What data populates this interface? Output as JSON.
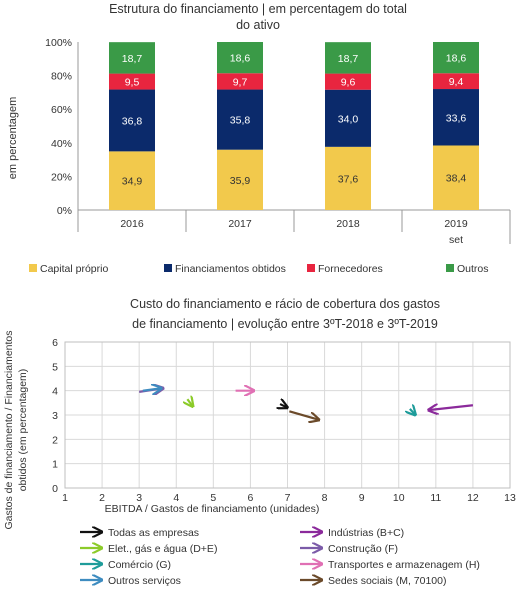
{
  "chart_data": [
    {
      "type": "bar",
      "stacked": true,
      "title_line1": "Estrutura do financiamento  | em percentagem  do total",
      "title_line2": "do ativo",
      "ylabel": "em percentagem",
      "ylim": [
        0,
        100
      ],
      "ytick_labels": [
        "0%",
        "20%",
        "40%",
        "60%",
        "80%",
        "100%"
      ],
      "categories": [
        "2016",
        "2017",
        "2018",
        "2019"
      ],
      "category_sublabels": [
        "",
        "",
        "",
        "set"
      ],
      "grid": false,
      "legend_position": "bottom",
      "series": [
        {
          "name": "Capital próprio",
          "color": "#F2C94C",
          "values": [
            34.9,
            35.9,
            37.6,
            38.4
          ],
          "labels": [
            "34,9",
            "35,9",
            "37,6",
            "38,4"
          ]
        },
        {
          "name": "Financiamentos obtidos",
          "color": "#0B2A6B",
          "values": [
            36.8,
            35.8,
            34.0,
            33.6
          ],
          "labels": [
            "36,8",
            "35,8",
            "34,0",
            "33,6"
          ]
        },
        {
          "name": "Fornecedores",
          "color": "#E8253F",
          "values": [
            9.5,
            9.7,
            9.6,
            9.4
          ],
          "labels": [
            "9,5",
            "9,7",
            "9,6",
            "9,4"
          ]
        },
        {
          "name": "Outros",
          "color": "#3A9A47",
          "values": [
            18.7,
            18.6,
            18.7,
            18.6
          ],
          "labels": [
            "18,7",
            "18,6",
            "18,7",
            "18,6"
          ]
        }
      ]
    },
    {
      "type": "scatter",
      "subtype": "arrows",
      "title_line1": "Custo do financiamento  e rácio de cobertura  dos gastos",
      "title_line2": "de financiamento  | evolução entre  3ºT-2018  e 3ºT-2019",
      "xlabel": "EBITDA / Gastos de financiamento (unidades)",
      "ylabel_line1": "Gastos de financiamento / Financiamentos",
      "ylabel_line2": "obtidos (em percentagem)",
      "xlim": [
        1,
        13
      ],
      "ylim": [
        0,
        6
      ],
      "xticks": [
        1,
        2,
        3,
        4,
        5,
        6,
        7,
        8,
        9,
        10,
        11,
        12,
        13
      ],
      "yticks": [
        0,
        1,
        2,
        3,
        4,
        5,
        6
      ],
      "grid": true,
      "legend_position": "bottom",
      "series": [
        {
          "name": "Todas as empresas",
          "color": "#111111",
          "from": [
            6.8,
            3.45
          ],
          "to": [
            7.0,
            3.3
          ]
        },
        {
          "name": "Indústrias (B+C)",
          "color": "#8B2A9B",
          "from": [
            12.0,
            3.4
          ],
          "to": [
            10.8,
            3.2
          ]
        },
        {
          "name": "Elet., gás e água (D+E)",
          "color": "#8CCB2A",
          "from": [
            4.3,
            3.65
          ],
          "to": [
            4.45,
            3.35
          ]
        },
        {
          "name": "Construção (F)",
          "color": "#7B5BA8",
          "from": [
            3.0,
            3.95
          ],
          "to": [
            3.65,
            4.1
          ]
        },
        {
          "name": "Comércio (G)",
          "color": "#1E9C9A",
          "from": [
            10.3,
            3.25
          ],
          "to": [
            10.45,
            3.0
          ]
        },
        {
          "name": "Transportes e armazenagem (H)",
          "color": "#E070B4",
          "from": [
            5.6,
            4.0
          ],
          "to": [
            6.1,
            4.0
          ]
        },
        {
          "name": "Outros serviços",
          "color": "#3E8CC0",
          "from": [
            3.1,
            4.0
          ],
          "to": [
            3.6,
            4.1
          ]
        },
        {
          "name": "Sedes sociais (M, 70100)",
          "color": "#6B4A2A",
          "from": [
            7.05,
            3.15
          ],
          "to": [
            7.85,
            2.8
          ]
        }
      ]
    }
  ]
}
